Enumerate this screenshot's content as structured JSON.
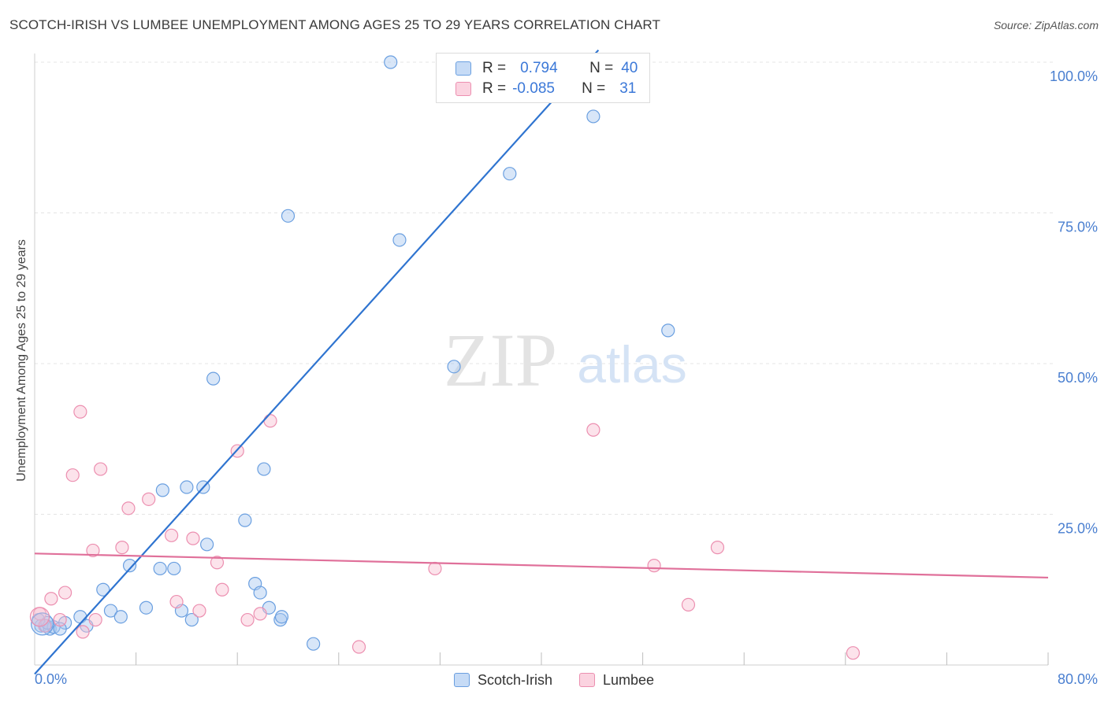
{
  "title": "SCOTCH-IRISH VS LUMBEE UNEMPLOYMENT AMONG AGES 25 TO 29 YEARS CORRELATION CHART",
  "source": "Source: ZipAtlas.com",
  "watermark": {
    "zip": "ZIP",
    "atlas": "atlas"
  },
  "legend": {
    "rows": [
      {
        "r_label": "R =",
        "r_value": "0.794",
        "n_label": "N =",
        "n_value": "40"
      },
      {
        "r_label": "R =",
        "r_value": "-0.085",
        "n_label": "N =",
        "n_value": "31"
      }
    ]
  },
  "chart_data": {
    "type": "scatter",
    "title": "SCOTCH-IRISH VS LUMBEE UNEMPLOYMENT AMONG AGES 25 TO 29 YEARS CORRELATION CHART",
    "xlabel": "",
    "ylabel": "Unemployment Among Ages 25 to 29 years",
    "xlim": [
      0,
      80
    ],
    "ylim": [
      0,
      100
    ],
    "x_tick_labels": [
      "0.0%",
      "80.0%"
    ],
    "y_tick_labels": [
      "25.0%",
      "50.0%",
      "75.0%",
      "100.0%"
    ],
    "y_ticks": [
      25,
      50,
      75,
      100
    ],
    "grid": true,
    "legend_position": "top-center",
    "series": [
      {
        "name": "Scotch-Irish",
        "color": "#a9c8f0",
        "stroke": "#6a9fe0",
        "line_color": "#2f74d0",
        "trend": {
          "x": [
            0,
            44.5
          ],
          "y": [
            -1.5,
            102
          ]
        },
        "points": [
          [
            0.5,
            6.5
          ],
          [
            0.9,
            6.5
          ],
          [
            1.2,
            6.0
          ],
          [
            1.5,
            6.3
          ],
          [
            2.4,
            7.0
          ],
          [
            3.6,
            8.0
          ],
          [
            4.1,
            6.5
          ],
          [
            5.4,
            12.5
          ],
          [
            6.0,
            9.0
          ],
          [
            6.8,
            8.0
          ],
          [
            7.5,
            16.5
          ],
          [
            8.8,
            9.5
          ],
          [
            9.9,
            16.0
          ],
          [
            10.1,
            29.0
          ],
          [
            11.0,
            16.0
          ],
          [
            11.6,
            9.0
          ],
          [
            12.0,
            29.5
          ],
          [
            12.4,
            7.5
          ],
          [
            13.3,
            29.5
          ],
          [
            13.6,
            20.0
          ],
          [
            14.1,
            47.5
          ],
          [
            16.6,
            24.0
          ],
          [
            17.4,
            13.5
          ],
          [
            17.8,
            12.0
          ],
          [
            18.1,
            32.5
          ],
          [
            18.5,
            9.5
          ],
          [
            19.4,
            7.5
          ],
          [
            19.5,
            8.0
          ],
          [
            20.0,
            74.5
          ],
          [
            22.0,
            3.5
          ],
          [
            28.1,
            100.0
          ],
          [
            28.8,
            70.5
          ],
          [
            33.1,
            49.5
          ],
          [
            37.5,
            81.5
          ],
          [
            44.1,
            91.0
          ],
          [
            45.5,
            100.0
          ],
          [
            50.0,
            55.5
          ],
          [
            1.0,
            7.0
          ],
          [
            2.0,
            6.0
          ],
          [
            0.3,
            7.5
          ]
        ]
      },
      {
        "name": "Lumbee",
        "color": "#f8c0d2",
        "stroke": "#ec8fb0",
        "line_color": "#e0709a",
        "trend": {
          "x": [
            0,
            80
          ],
          "y": [
            18.5,
            14.5
          ]
        },
        "points": [
          [
            0.4,
            8.5
          ],
          [
            0.8,
            6.5
          ],
          [
            1.3,
            11.0
          ],
          [
            2.0,
            7.5
          ],
          [
            2.4,
            12.0
          ],
          [
            3.0,
            31.5
          ],
          [
            3.6,
            42.0
          ],
          [
            3.8,
            5.5
          ],
          [
            4.6,
            19.0
          ],
          [
            4.8,
            7.5
          ],
          [
            5.2,
            32.5
          ],
          [
            6.9,
            19.5
          ],
          [
            7.4,
            26.0
          ],
          [
            9.0,
            27.5
          ],
          [
            10.8,
            21.5
          ],
          [
            11.2,
            10.5
          ],
          [
            12.5,
            21.0
          ],
          [
            13.0,
            9.0
          ],
          [
            14.4,
            17.0
          ],
          [
            14.8,
            12.5
          ],
          [
            16.0,
            35.5
          ],
          [
            16.8,
            7.5
          ],
          [
            17.8,
            8.5
          ],
          [
            18.6,
            40.5
          ],
          [
            25.6,
            3.0
          ],
          [
            31.6,
            16.0
          ],
          [
            44.1,
            39.0
          ],
          [
            48.9,
            16.5
          ],
          [
            51.6,
            10.0
          ],
          [
            53.9,
            19.5
          ],
          [
            64.6,
            2.0
          ]
        ]
      }
    ]
  }
}
